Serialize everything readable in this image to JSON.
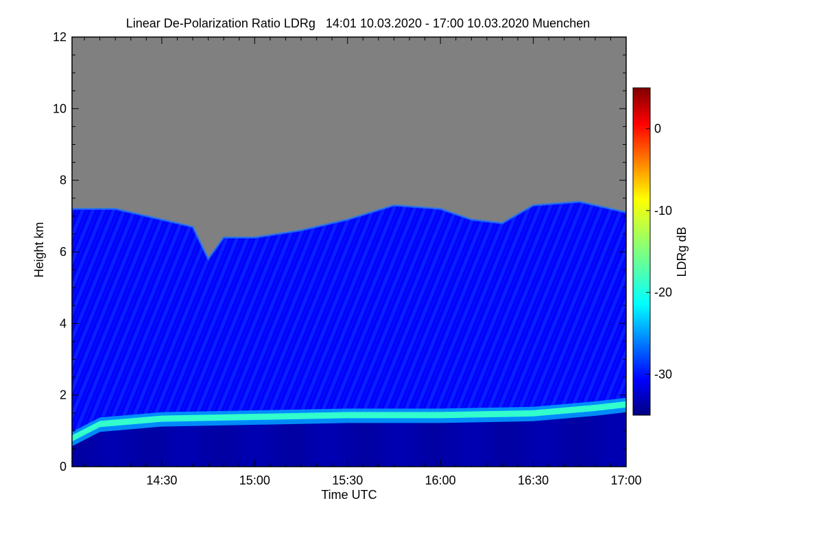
{
  "chart_data": {
    "type": "heatmap",
    "title": "Linear De-Polarization Ratio LDRg   14:01 10.03.2020 - 17:00 10.03.2020 Muenchen",
    "xlabel": "Time UTC",
    "ylabel": "Height km",
    "xlim": [
      "14:01",
      "17:00"
    ],
    "ylim": [
      0,
      12
    ],
    "x_ticks": [
      "14:30",
      "15:00",
      "15:30",
      "16:00",
      "16:30",
      "17:00"
    ],
    "y_ticks": [
      0,
      2,
      4,
      6,
      8,
      10,
      12
    ],
    "colorbar": {
      "label": "LDRg dB",
      "range": [
        -35,
        5
      ],
      "ticks": [
        0,
        -10,
        -20,
        -30
      ],
      "colormap": "jet"
    },
    "no_signal_color": "#808080",
    "signal_top_km": {
      "time": [
        "14:01",
        "14:15",
        "14:30",
        "14:40",
        "14:45",
        "14:50",
        "15:00",
        "15:15",
        "15:30",
        "15:45",
        "16:00",
        "16:10",
        "16:20",
        "16:30",
        "16:45",
        "17:00"
      ],
      "height": [
        7.2,
        7.2,
        6.9,
        6.7,
        5.8,
        6.4,
        6.4,
        6.6,
        6.9,
        7.3,
        7.2,
        6.9,
        6.8,
        7.3,
        7.4,
        7.1
      ]
    },
    "bright_layer_km": {
      "time": [
        "14:01",
        "14:10",
        "14:30",
        "15:00",
        "15:30",
        "16:00",
        "16:30",
        "16:50",
        "17:00"
      ],
      "height": [
        0.8,
        1.2,
        1.35,
        1.4,
        1.45,
        1.45,
        1.5,
        1.65,
        1.75
      ],
      "ldr_db": -18
    },
    "background_ldr_db": {
      "upper": -30,
      "lower": -33,
      "boundary": -34
    }
  }
}
